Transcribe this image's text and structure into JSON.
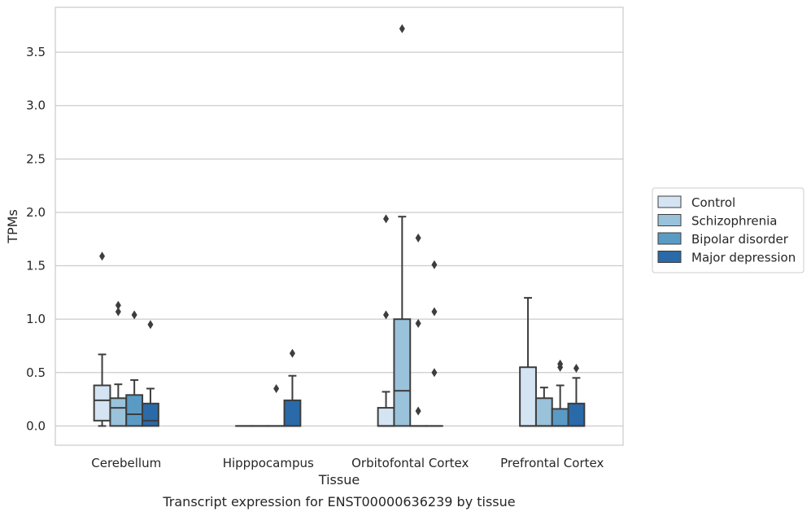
{
  "chart_data": {
    "type": "box",
    "title": "",
    "xlabel": "Tissue",
    "ylabel": "TPMs",
    "caption": "Transcript expression for ENST00000636239 by tissue",
    "ylim": [
      -0.18,
      3.92
    ],
    "yticks": [
      0.0,
      0.5,
      1.0,
      1.5,
      2.0,
      2.5,
      3.0,
      3.5
    ],
    "ytick_labels": [
      "0.0",
      "0.5",
      "1.0",
      "1.5",
      "2.0",
      "2.5",
      "3.0",
      "3.5"
    ],
    "grid": "y",
    "legend_position": "right",
    "categories": [
      "Cerebellum",
      "Hipppocampus",
      "Orbitofontal Cortex",
      "Prefrontal Cortex"
    ],
    "series": [
      {
        "name": "Control",
        "color": "#d4e4f2",
        "boxes": [
          {
            "q1": 0.05,
            "median": 0.24,
            "q3": 0.38,
            "whislo": 0.0,
            "whishi": 0.67,
            "fliers": [
              1.59
            ]
          },
          {
            "q1": 0.0,
            "median": 0.0,
            "q3": 0.0,
            "whislo": 0.0,
            "whishi": 0.0,
            "fliers": []
          },
          {
            "q1": 0.0,
            "median": 0.0,
            "q3": 0.17,
            "whislo": 0.0,
            "whishi": 0.32,
            "fliers": [
              1.04,
              1.94
            ]
          },
          {
            "q1": 0.0,
            "median": 0.0,
            "q3": 0.55,
            "whislo": 0.0,
            "whishi": 1.2,
            "fliers": []
          }
        ]
      },
      {
        "name": "Schizophrenia",
        "color": "#9ac2da",
        "boxes": [
          {
            "q1": 0.0,
            "median": 0.17,
            "q3": 0.26,
            "whislo": 0.0,
            "whishi": 0.39,
            "fliers": [
              1.07,
              1.13
            ]
          },
          {
            "q1": 0.0,
            "median": 0.0,
            "q3": 0.0,
            "whislo": 0.0,
            "whishi": 0.0,
            "fliers": []
          },
          {
            "q1": 0.0,
            "median": 0.33,
            "q3": 1.0,
            "whislo": 0.0,
            "whishi": 1.96,
            "fliers": [
              3.72
            ]
          },
          {
            "q1": 0.0,
            "median": 0.0,
            "q3": 0.26,
            "whislo": 0.0,
            "whishi": 0.36,
            "fliers": []
          }
        ]
      },
      {
        "name": "Bipolar disorder",
        "color": "#5a9bc6",
        "boxes": [
          {
            "q1": 0.0,
            "median": 0.11,
            "q3": 0.29,
            "whislo": 0.0,
            "whishi": 0.43,
            "fliers": [
              1.04
            ]
          },
          {
            "q1": 0.0,
            "median": 0.0,
            "q3": 0.0,
            "whislo": 0.0,
            "whishi": 0.0,
            "fliers": [
              0.35
            ]
          },
          {
            "q1": 0.0,
            "median": 0.0,
            "q3": 0.0,
            "whislo": 0.0,
            "whishi": 0.0,
            "fliers": [
              0.14,
              0.96,
              1.76
            ]
          },
          {
            "q1": 0.0,
            "median": 0.0,
            "q3": 0.16,
            "whislo": 0.0,
            "whishi": 0.38,
            "fliers": [
              0.55,
              0.58
            ]
          }
        ]
      },
      {
        "name": "Major depression",
        "color": "#2a6aa8",
        "boxes": [
          {
            "q1": 0.0,
            "median": 0.05,
            "q3": 0.21,
            "whislo": 0.0,
            "whishi": 0.35,
            "fliers": [
              0.95
            ]
          },
          {
            "q1": 0.0,
            "median": 0.0,
            "q3": 0.24,
            "whislo": 0.0,
            "whishi": 0.47,
            "fliers": [
              0.68
            ]
          },
          {
            "q1": 0.0,
            "median": 0.0,
            "q3": 0.0,
            "whislo": 0.0,
            "whishi": 0.0,
            "fliers": [
              0.5,
              1.07,
              1.51
            ]
          },
          {
            "q1": 0.0,
            "median": 0.0,
            "q3": 0.21,
            "whislo": 0.0,
            "whishi": 0.45,
            "fliers": [
              0.54
            ]
          }
        ]
      }
    ]
  }
}
